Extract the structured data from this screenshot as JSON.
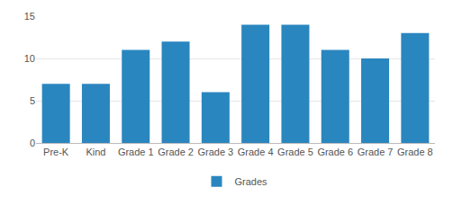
{
  "chart_data": {
    "type": "bar",
    "categories": [
      "Pre-K",
      "Kind",
      "Grade 1",
      "Grade 2",
      "Grade 3",
      "Grade 4",
      "Grade 5",
      "Grade 6",
      "Grade 7",
      "Grade 8"
    ],
    "series": [
      {
        "name": "Grades",
        "color": "#2a86bf",
        "values": [
          7,
          7,
          11,
          12,
          6,
          14,
          14,
          11,
          10,
          13
        ]
      }
    ],
    "ylim": [
      0,
      15
    ],
    "yticks": [
      0,
      5,
      10,
      15
    ],
    "grid": true,
    "legend": "bottom"
  }
}
